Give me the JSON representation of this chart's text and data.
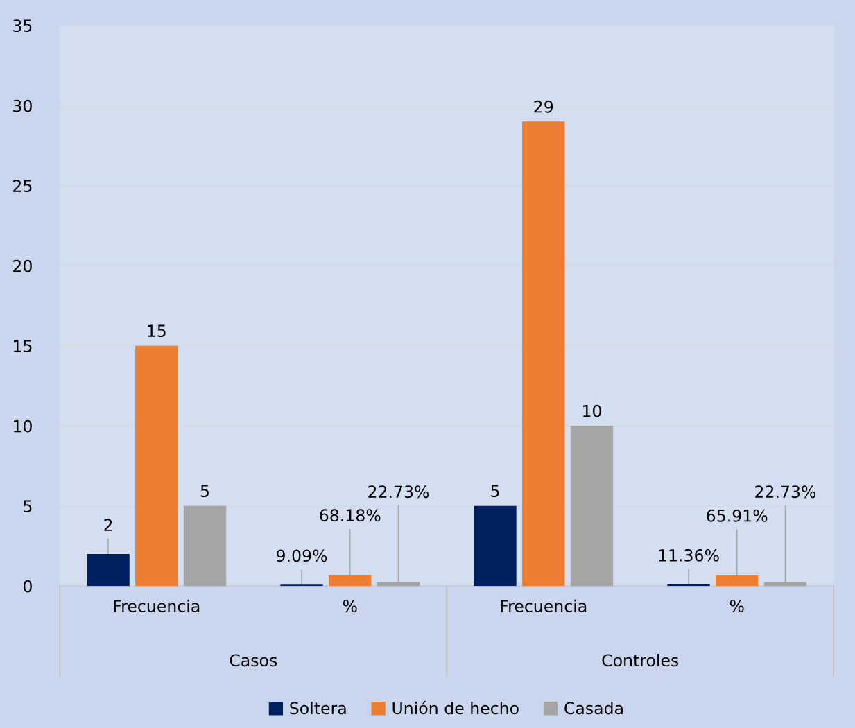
{
  "chart_data": {
    "type": "bar",
    "categories": [
      "Frecuencia",
      "%",
      "Frecuencia",
      "%"
    ],
    "series": [
      {
        "name": "Soltera",
        "color": "#002060",
        "values": [
          2,
          0.0909,
          5,
          0.1136
        ],
        "value_labels": [
          "2",
          "9.09%",
          "5",
          "11.36%"
        ]
      },
      {
        "name": "Unión de hecho",
        "color": "#ed7d31",
        "values": [
          15,
          0.6818,
          29,
          0.6591
        ],
        "value_labels": [
          "15",
          "68.18%",
          "29",
          "65.91%"
        ]
      },
      {
        "name": "Casada",
        "color": "#a5a5a5",
        "values": [
          5,
          0.2273,
          10,
          0.2273
        ],
        "value_labels": [
          "5",
          "22.73%",
          "10",
          "22.73%"
        ]
      }
    ],
    "annotations": [
      "Casos",
      "Controles"
    ],
    "ylim": [
      0,
      35
    ],
    "yticks": [
      0,
      5,
      10,
      15,
      20,
      25,
      30,
      35
    ],
    "grid": "y",
    "legend": "bottom"
  }
}
